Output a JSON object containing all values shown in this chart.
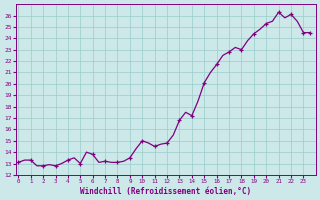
{
  "x_data": [
    0,
    0.5,
    1,
    1.5,
    2,
    2.5,
    3,
    3.5,
    4,
    4.5,
    5,
    5.5,
    6,
    6.5,
    7,
    7.5,
    8,
    8.5,
    9,
    9.5,
    10,
    10.5,
    11,
    11.5,
    12,
    12.5,
    13,
    13.5,
    14,
    14.5,
    15,
    15.5,
    16,
    16.5,
    17,
    17.5,
    18,
    18.5,
    19,
    19.5,
    20,
    20.5,
    21,
    21.5,
    22,
    22.5,
    23,
    23.5
  ],
  "y_data": [
    13.1,
    13.3,
    13.3,
    12.8,
    12.8,
    12.9,
    12.8,
    13.0,
    13.3,
    13.5,
    13.0,
    14.0,
    13.8,
    13.1,
    13.2,
    13.1,
    13.1,
    13.2,
    13.5,
    14.3,
    15.0,
    14.8,
    14.5,
    14.7,
    14.8,
    15.5,
    16.8,
    17.5,
    17.2,
    18.5,
    20.1,
    21.0,
    21.7,
    22.5,
    22.8,
    23.2,
    23.0,
    23.8,
    24.4,
    24.8,
    25.3,
    25.5,
    26.3,
    25.8,
    26.1,
    25.5,
    24.5,
    24.5
  ],
  "marker_x": [
    0,
    1,
    2,
    3,
    4,
    5,
    6,
    7,
    8,
    9,
    10,
    11,
    12,
    13,
    14,
    15,
    16,
    17,
    18,
    19,
    20,
    21,
    22,
    23,
    23.5
  ],
  "line_color": "#800080",
  "marker_color": "#800080",
  "bg_color": "#cce8e8",
  "grid_color": "#99cccc",
  "axis_color": "#800080",
  "xlabel": "Windchill (Refroidissement éolien,°C)",
  "ylim": [
    12,
    27
  ],
  "xlim": [
    -0.2,
    24
  ],
  "yticks": [
    12,
    13,
    14,
    15,
    16,
    17,
    18,
    19,
    20,
    21,
    22,
    23,
    24,
    25,
    26
  ],
  "xticks": [
    0,
    1,
    2,
    3,
    4,
    5,
    6,
    7,
    8,
    9,
    10,
    11,
    12,
    13,
    14,
    15,
    16,
    17,
    18,
    19,
    20,
    21,
    22,
    23
  ]
}
